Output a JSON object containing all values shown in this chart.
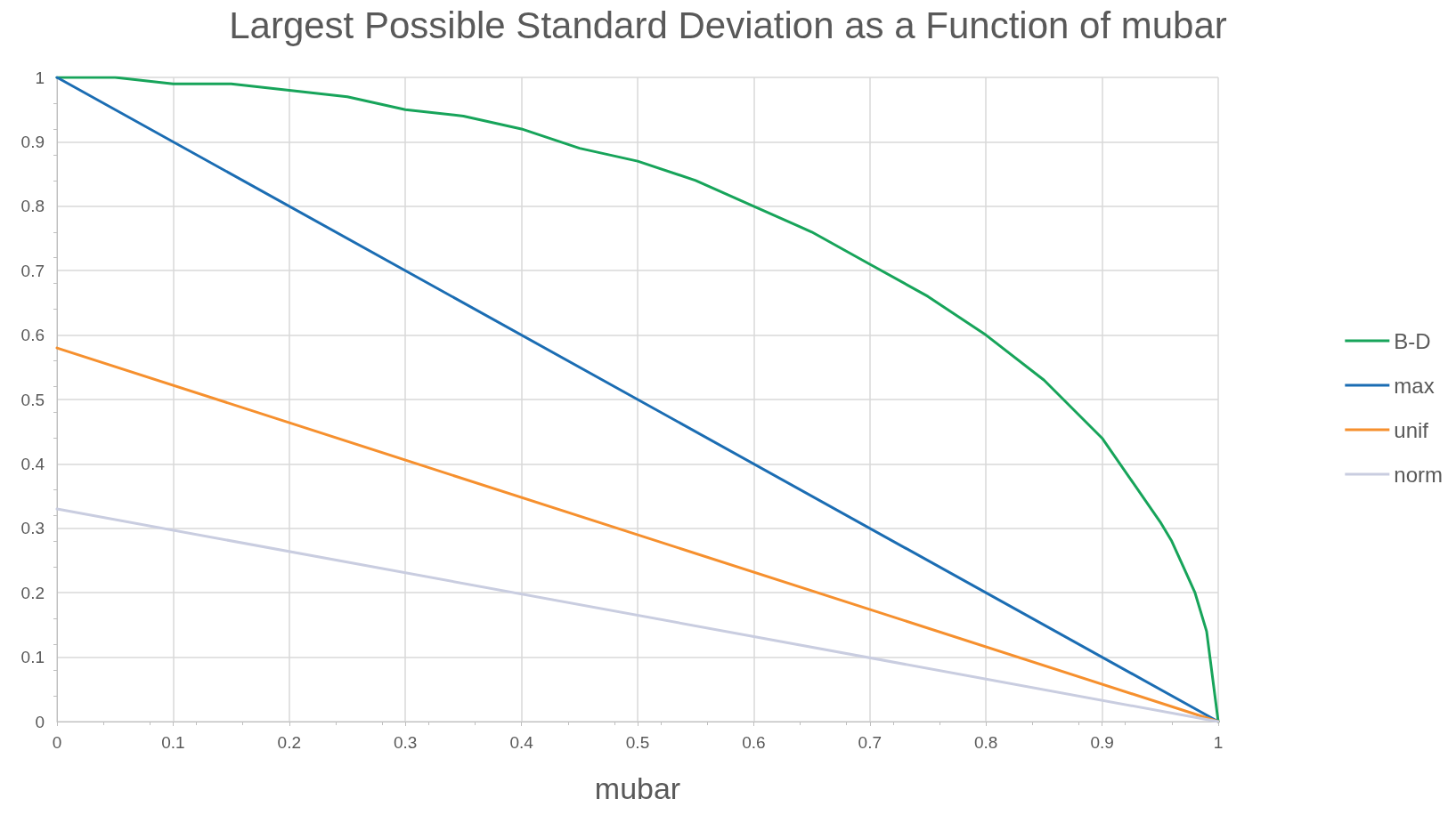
{
  "chart_data": {
    "type": "line",
    "title": "Largest Possible Standard Deviation as a Function of mubar",
    "xlabel": "mubar",
    "xlim": [
      0,
      1
    ],
    "xticks": [
      0,
      0.1,
      0.2,
      0.3,
      0.4,
      0.5,
      0.6,
      0.7,
      0.8,
      0.9,
      1
    ],
    "ylim": [
      0,
      1
    ],
    "yticks": [
      0,
      0.1,
      0.2,
      0.3,
      0.4,
      0.5,
      0.6,
      0.7,
      0.8,
      0.9,
      1
    ],
    "grid": true,
    "legend": "right",
    "marker": "none",
    "line_style": "solid",
    "series": [
      {
        "name": "B-D",
        "color": "#17a45a",
        "x": [
          0,
          0.05,
          0.1,
          0.15,
          0.2,
          0.25,
          0.3,
          0.35,
          0.4,
          0.45,
          0.5,
          0.55,
          0.6,
          0.65,
          0.7,
          0.75,
          0.8,
          0.85,
          0.9,
          0.95,
          0.96,
          0.97,
          0.98,
          0.99,
          1
        ],
        "values": [
          1,
          1.0,
          0.99,
          0.99,
          0.98,
          0.97,
          0.95,
          0.94,
          0.92,
          0.89,
          0.87,
          0.84,
          0.8,
          0.76,
          0.71,
          0.66,
          0.6,
          0.53,
          0.44,
          0.31,
          0.28,
          0.24,
          0.2,
          0.14,
          0
        ]
      },
      {
        "name": "max",
        "color": "#1b6db3",
        "x": [
          0,
          1
        ],
        "values": [
          1,
          0
        ]
      },
      {
        "name": "unif",
        "color": "#f6902e",
        "x": [
          0,
          1
        ],
        "values": [
          0.58,
          0
        ]
      },
      {
        "name": "norm",
        "color": "#c9cde0",
        "x": [
          0,
          1
        ],
        "values": [
          0.33,
          0
        ]
      }
    ]
  }
}
